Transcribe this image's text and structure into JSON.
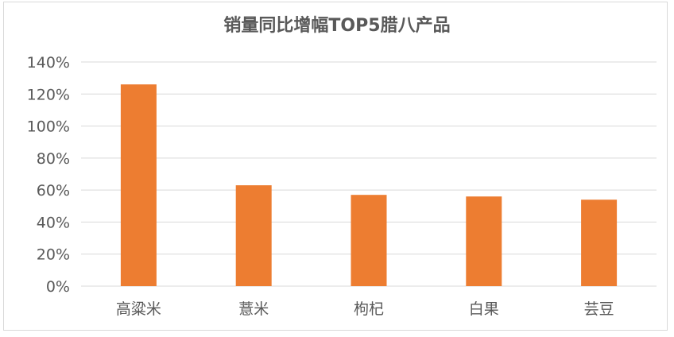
{
  "chart_data": {
    "type": "bar",
    "title": "销量同比增幅TOP5腊八产品",
    "xlabel": "",
    "ylabel": "",
    "categories": [
      "高粱米",
      "薏米",
      "枸杞",
      "白果",
      "芸豆"
    ],
    "values": [
      126,
      63,
      57,
      56,
      54
    ],
    "ylim": [
      0,
      140
    ],
    "yticks": [
      "0%",
      "20%",
      "40%",
      "60%",
      "80%",
      "100%",
      "120%",
      "140%"
    ],
    "grid": true,
    "legend": "none",
    "bar_color": "#ED7D31",
    "grid_color": "#d9d9d9",
    "text_color": "#595959"
  }
}
